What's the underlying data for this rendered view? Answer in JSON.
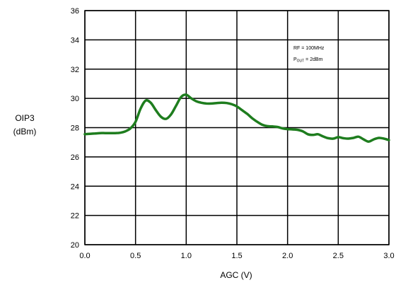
{
  "chart_data": {
    "type": "line",
    "xlabel": "AGC (V)",
    "ylabel_line1": "OIP3",
    "ylabel_line2": "(dBm)",
    "xlim": [
      0,
      3.0
    ],
    "ylim": [
      20,
      36
    ],
    "x_ticks": [
      "0.0",
      "0.5",
      "1.0",
      "1.5",
      "2.0",
      "2.5",
      "3.0"
    ],
    "y_ticks": [
      "20",
      "22",
      "24",
      "26",
      "28",
      "30",
      "32",
      "34",
      "36"
    ],
    "grid": true,
    "line_color": "#1e7d1e",
    "annotation": {
      "line1": "RF = 100MHz",
      "line2_main": "P",
      "line2_sub": "OUT",
      "line2_rest": " = 2dBm"
    },
    "series": [
      {
        "x": [
          0.0,
          0.05,
          0.1,
          0.15,
          0.2,
          0.25,
          0.3,
          0.35,
          0.4,
          0.45,
          0.5,
          0.55,
          0.6,
          0.65,
          0.7,
          0.75,
          0.8,
          0.85,
          0.9,
          0.95,
          1.0,
          1.05,
          1.1,
          1.15,
          1.2,
          1.25,
          1.3,
          1.35,
          1.4,
          1.45,
          1.5,
          1.55,
          1.6,
          1.65,
          1.7,
          1.75,
          1.8,
          1.85,
          1.9,
          1.95,
          2.0,
          2.05,
          2.1,
          2.15,
          2.2,
          2.25,
          2.3,
          2.35,
          2.4,
          2.45,
          2.5,
          2.55,
          2.6,
          2.65,
          2.7,
          2.75,
          2.8,
          2.85,
          2.9,
          2.95,
          3.0
        ],
        "y": [
          27.55,
          27.58,
          27.6,
          27.63,
          27.63,
          27.63,
          27.63,
          27.65,
          27.75,
          27.95,
          28.4,
          29.3,
          29.85,
          29.7,
          29.2,
          28.75,
          28.6,
          28.9,
          29.5,
          30.1,
          30.25,
          30.0,
          29.8,
          29.7,
          29.65,
          29.65,
          29.68,
          29.7,
          29.68,
          29.6,
          29.45,
          29.2,
          28.95,
          28.65,
          28.4,
          28.2,
          28.1,
          28.08,
          28.05,
          27.95,
          27.9,
          27.88,
          27.85,
          27.75,
          27.55,
          27.5,
          27.55,
          27.4,
          27.28,
          27.25,
          27.35,
          27.28,
          27.25,
          27.3,
          27.38,
          27.2,
          27.05,
          27.2,
          27.3,
          27.25,
          27.15
        ]
      }
    ]
  }
}
